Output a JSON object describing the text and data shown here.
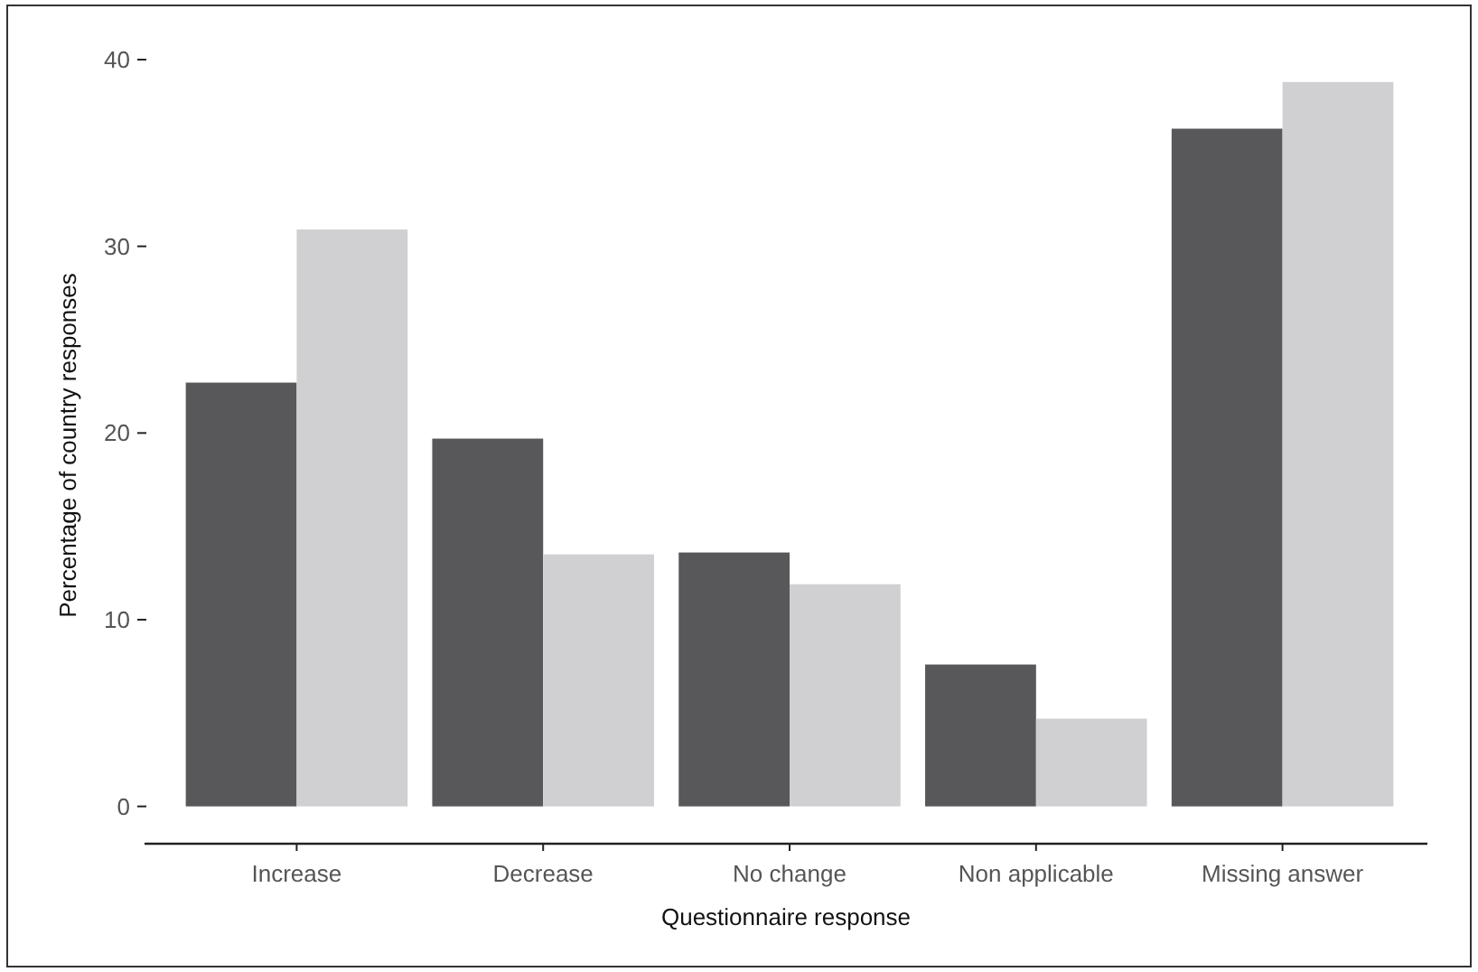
{
  "chart_data": {
    "type": "bar",
    "xlabel": "Questionnaire response",
    "ylabel": "Percentage of country responses",
    "categories": [
      "Increase",
      "Decrease",
      "No change",
      "Non applicable",
      "Missing answer"
    ],
    "series": [
      {
        "color": "#58585a",
        "values": [
          22.7,
          19.7,
          13.6,
          7.6,
          36.3
        ]
      },
      {
        "color": "#d0d0d2",
        "values": [
          30.9,
          13.5,
          11.9,
          4.7,
          38.8
        ]
      }
    ],
    "ylim": [
      -2,
      40
    ],
    "yticks": [
      0,
      10,
      20,
      30,
      40
    ],
    "grid": false
  }
}
